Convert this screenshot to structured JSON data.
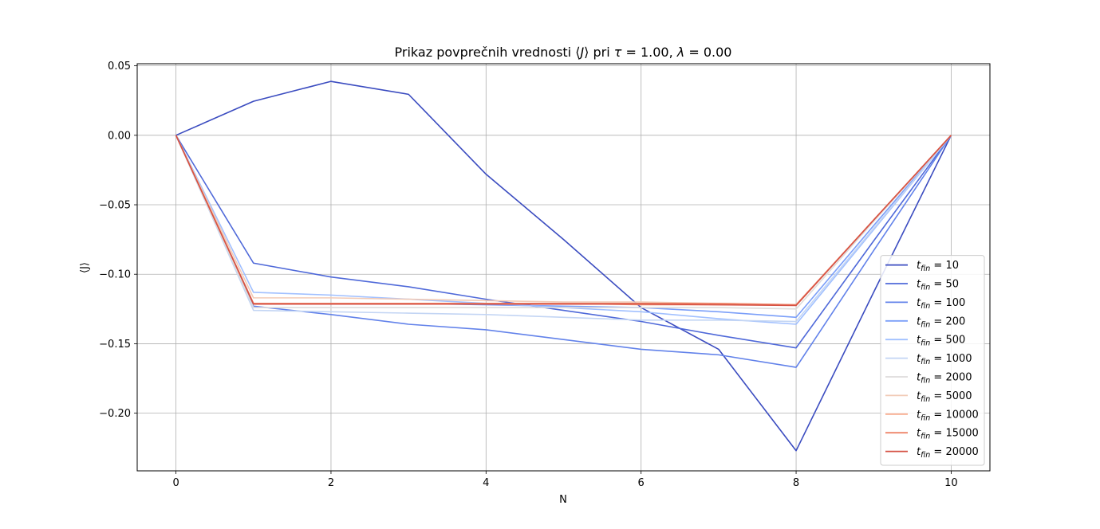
{
  "chart_data": {
    "type": "line",
    "title": "Prikaz povprečnih vrednosti ⟨J⟩ pri τ = 1.00, λ = 0.00",
    "title_parts": {
      "prefix": "Prikaz povprečnih vrednosti ⟨",
      "var": "J",
      "mid": "⟩ pri ",
      "tau": "τ",
      "tau_value": " = 1.00, ",
      "lambda": "λ",
      "lambda_value": " = 0.00"
    },
    "xlabel": "N",
    "ylabel": "⟨J⟩",
    "xlim": [
      -0.5,
      10.5
    ],
    "ylim": [
      -0.2415,
      0.0515
    ],
    "xticks": [
      0,
      2,
      4,
      6,
      8,
      10
    ],
    "yticks": [
      0.05,
      0.0,
      -0.05,
      -0.1,
      -0.15,
      -0.2
    ],
    "ytick_labels": [
      "0.05",
      "0.00",
      "−0.05",
      "−0.10",
      "−0.15",
      "−0.20"
    ],
    "grid": true,
    "legend_position": "lower-right",
    "legend_prefix": "t",
    "legend_subscript": "fin",
    "x": [
      0,
      1,
      2,
      3,
      4,
      5,
      6,
      7,
      8,
      9,
      10
    ],
    "series": [
      {
        "name": "10",
        "color": "#3b4cc0",
        "values": [
          0.0,
          0.0245,
          0.0388,
          0.0295,
          -0.028,
          -0.075,
          -0.124,
          -0.154,
          -0.227,
          -0.113,
          0.0
        ]
      },
      {
        "name": "50",
        "color": "#4f69d9",
        "values": [
          0.0,
          -0.092,
          -0.102,
          -0.109,
          -0.118,
          -0.126,
          -0.134,
          -0.144,
          -0.153,
          -0.076,
          0.0
        ]
      },
      {
        "name": "100",
        "color": "#6282ea",
        "values": [
          0.0,
          -0.123,
          -0.129,
          -0.136,
          -0.14,
          -0.147,
          -0.154,
          -0.158,
          -0.167,
          -0.083,
          0.0
        ]
      },
      {
        "name": "200",
        "color": "#7b9ff9",
        "values": [
          0.0,
          -0.121,
          -0.121,
          -0.121,
          -0.122,
          -0.123,
          -0.124,
          -0.127,
          -0.131,
          -0.065,
          0.0
        ]
      },
      {
        "name": "500",
        "color": "#a1c0ff",
        "values": [
          0.0,
          -0.113,
          -0.115,
          -0.118,
          -0.121,
          -0.124,
          -0.127,
          -0.132,
          -0.136,
          -0.068,
          0.0
        ]
      },
      {
        "name": "1000",
        "color": "#c3d5f4",
        "values": [
          0.0,
          -0.126,
          -0.127,
          -0.128,
          -0.129,
          -0.131,
          -0.133,
          -0.133,
          -0.134,
          -0.067,
          0.0
        ]
      },
      {
        "name": "2000",
        "color": "#dedcdb",
        "values": [
          0.0,
          -0.124,
          -0.124,
          -0.124,
          -0.124,
          -0.124,
          -0.124,
          -0.124,
          -0.125,
          -0.062,
          0.0
        ]
      },
      {
        "name": "5000",
        "color": "#f2cbb7",
        "values": [
          0.0,
          -0.117,
          -0.117,
          -0.118,
          -0.119,
          -0.12,
          -0.12,
          -0.121,
          -0.122,
          -0.061,
          0.0
        ]
      },
      {
        "name": "10000",
        "color": "#f7ac8e",
        "values": [
          0.0,
          -0.121,
          -0.121,
          -0.121,
          -0.121,
          -0.121,
          -0.122,
          -0.122,
          -0.122,
          -0.061,
          0.0
        ]
      },
      {
        "name": "15000",
        "color": "#ee8468",
        "values": [
          0.0,
          -0.121,
          -0.121,
          -0.121,
          -0.121,
          -0.121,
          -0.121,
          -0.121,
          -0.122,
          -0.061,
          0.0
        ]
      },
      {
        "name": "20000",
        "color": "#d65244",
        "values": [
          0.0,
          -0.1215,
          -0.1215,
          -0.1215,
          -0.1215,
          -0.1215,
          -0.1215,
          -0.122,
          -0.1225,
          -0.061,
          0.0
        ]
      }
    ]
  }
}
